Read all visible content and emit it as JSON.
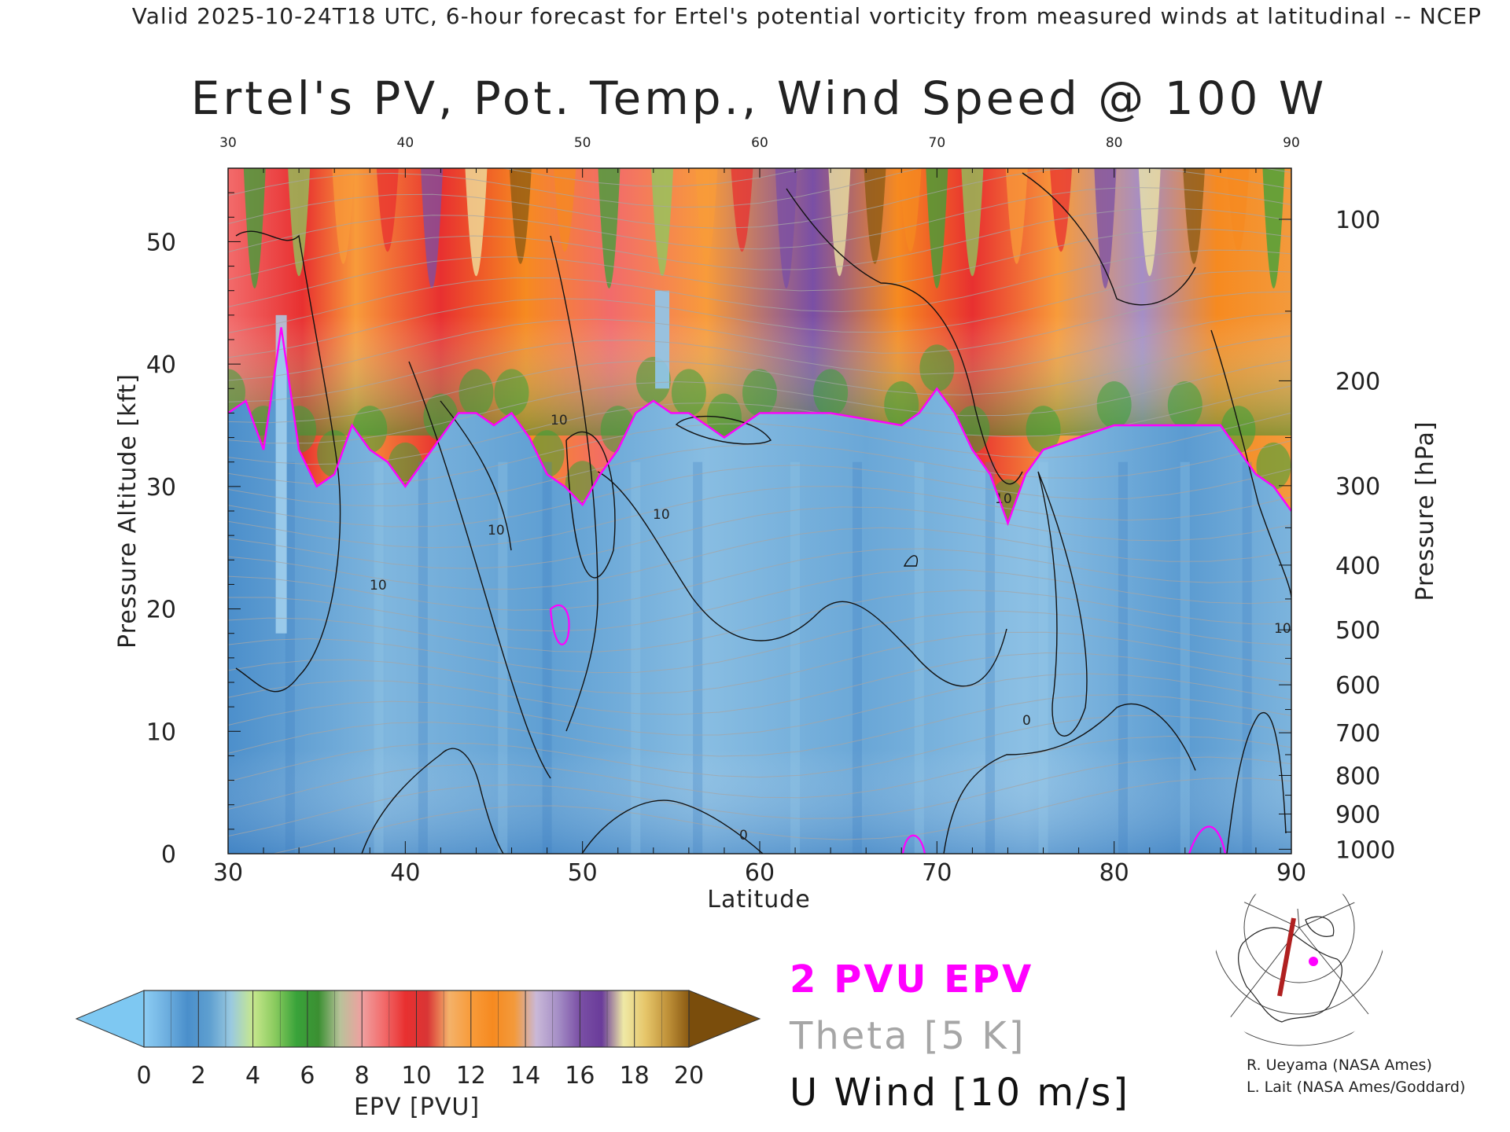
{
  "header": "Valid 2025-10-24T18 UTC, 6-hour forecast for Ertel's potential vorticity from measured winds at latitudinal -- NCEP",
  "chart_data": {
    "type": "heatmap",
    "title": "Ertel's PV, Pot. Temp., Wind Speed @ 100 W",
    "xlabel": "Latitude",
    "ylabel": "Pressure Altitude [kft]",
    "y2label": "Pressure [hPa]",
    "xlim": [
      30,
      90
    ],
    "ylim": [
      0,
      56
    ],
    "x_ticks": [
      "30",
      "40",
      "50",
      "60",
      "70",
      "80",
      "90"
    ],
    "y_ticks": [
      "0",
      "10",
      "20",
      "30",
      "40",
      "50"
    ],
    "pressure_ticks": [
      "100",
      "200",
      "300",
      "400",
      "500",
      "600",
      "700",
      "800",
      "900",
      "1000"
    ],
    "tropopause_kft": [
      [
        30,
        36
      ],
      [
        31,
        37
      ],
      [
        32,
        33
      ],
      [
        33,
        43
      ],
      [
        34,
        33
      ],
      [
        35,
        30
      ],
      [
        36,
        31
      ],
      [
        37,
        35
      ],
      [
        38,
        33
      ],
      [
        39,
        32
      ],
      [
        40,
        30
      ],
      [
        41,
        32
      ],
      [
        42,
        34
      ],
      [
        43,
        36
      ],
      [
        44,
        36
      ],
      [
        45,
        35
      ],
      [
        46,
        36
      ],
      [
        47,
        34
      ],
      [
        48,
        31
      ],
      [
        49,
        30
      ],
      [
        50,
        28.5
      ],
      [
        51,
        31
      ],
      [
        52,
        33
      ],
      [
        53,
        36
      ],
      [
        54,
        37
      ],
      [
        55,
        36
      ],
      [
        56,
        36
      ],
      [
        57,
        35
      ],
      [
        58,
        34
      ],
      [
        59,
        35
      ],
      [
        60,
        36
      ],
      [
        62,
        36
      ],
      [
        64,
        36
      ],
      [
        66,
        35.5
      ],
      [
        68,
        35
      ],
      [
        69,
        36
      ],
      [
        70,
        38
      ],
      [
        71,
        36
      ],
      [
        72,
        33
      ],
      [
        73,
        31
      ],
      [
        74,
        27
      ],
      [
        75,
        31
      ],
      [
        76,
        33
      ],
      [
        78,
        34
      ],
      [
        80,
        35
      ],
      [
        82,
        35
      ],
      [
        84,
        35
      ],
      [
        86,
        35
      ],
      [
        87,
        33
      ],
      [
        88,
        31
      ],
      [
        89,
        30
      ],
      [
        90,
        28
      ]
    ],
    "colorbar": {
      "label": "EPV [PVU]",
      "ticks": [
        "0",
        "2",
        "4",
        "6",
        "8",
        "10",
        "12",
        "14",
        "16",
        "18",
        "20"
      ],
      "range": [
        0,
        20
      ],
      "colors": [
        "#8ccdf4",
        "#6fb0e0",
        "#4a8fcb",
        "#5e9fd0",
        "#9ac9e0",
        "#c7e88d",
        "#8bcb5f",
        "#39a33a",
        "#3b8f32",
        "#b8c29a",
        "#f0a0a0",
        "#f26b6b",
        "#e83030",
        "#d93535",
        "#f4b26a",
        "#f89b3a",
        "#f68a20",
        "#f39a3c",
        "#c9b8d8",
        "#a58ec6",
        "#7a4fa5",
        "#6a3c9a",
        "#efe9a6",
        "#e6c66a",
        "#c0923a",
        "#8a5a12"
      ],
      "under": "#7ec8f2",
      "over": "#7a4d0c"
    },
    "legend": [
      {
        "label": "2 PVU EPV",
        "color": "#ff00ff"
      },
      {
        "label": "Theta [5 K]",
        "color": "#a6a6a6"
      },
      {
        "label": "U Wind [10 m/s]",
        "color": "#111111"
      }
    ]
  },
  "map_inset": {
    "section_color": "#b02020",
    "marker_color": "#ff00ff"
  },
  "credits": [
    "R. Ueyama (NASA Ames)",
    "L. Lait (NASA Ames/Goddard)"
  ]
}
